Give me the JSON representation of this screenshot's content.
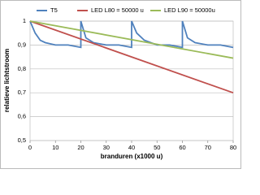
{
  "chart_data": {
    "type": "line",
    "xlabel": "branduren (x1000 u)",
    "ylabel": "relatieve lichtstroom",
    "xlim": [
      0,
      80
    ],
    "xticks": [
      0,
      10,
      20,
      30,
      40,
      50,
      60,
      70,
      80
    ],
    "ylim": [
      0.5,
      1
    ],
    "yticks": [
      {
        "value": 0.5,
        "label": "0,5"
      },
      {
        "value": 0.6,
        "label": "0,6"
      },
      {
        "value": 0.7,
        "label": "0,7"
      },
      {
        "value": 0.8,
        "label": "0,8"
      },
      {
        "value": 0.9,
        "label": "0,9"
      },
      1
    ],
    "grid": true,
    "legend": "top",
    "series": [
      {
        "name": "T5",
        "color": "#4f81bd",
        "x": [
          0,
          2,
          4,
          6,
          10,
          15,
          20,
          20,
          22,
          25,
          30,
          35,
          40,
          40,
          42,
          45,
          50,
          55,
          60,
          60,
          62,
          65,
          70,
          75,
          80
        ],
        "values": [
          1,
          0.95,
          0.92,
          0.91,
          0.9,
          0.9,
          0.89,
          1,
          0.93,
          0.91,
          0.9,
          0.9,
          0.89,
          1,
          0.95,
          0.92,
          0.9,
          0.9,
          0.89,
          1,
          0.93,
          0.91,
          0.9,
          0.9,
          0.89
        ]
      },
      {
        "name": "LED L80 = 50000 u",
        "color": "#c0504d",
        "x": [
          0,
          80
        ],
        "values": [
          1,
          0.7
        ]
      },
      {
        "name": "LED L90 = 50000u",
        "color": "#9bbb59",
        "x": [
          0,
          80
        ],
        "values": [
          1,
          0.845
        ]
      }
    ]
  }
}
